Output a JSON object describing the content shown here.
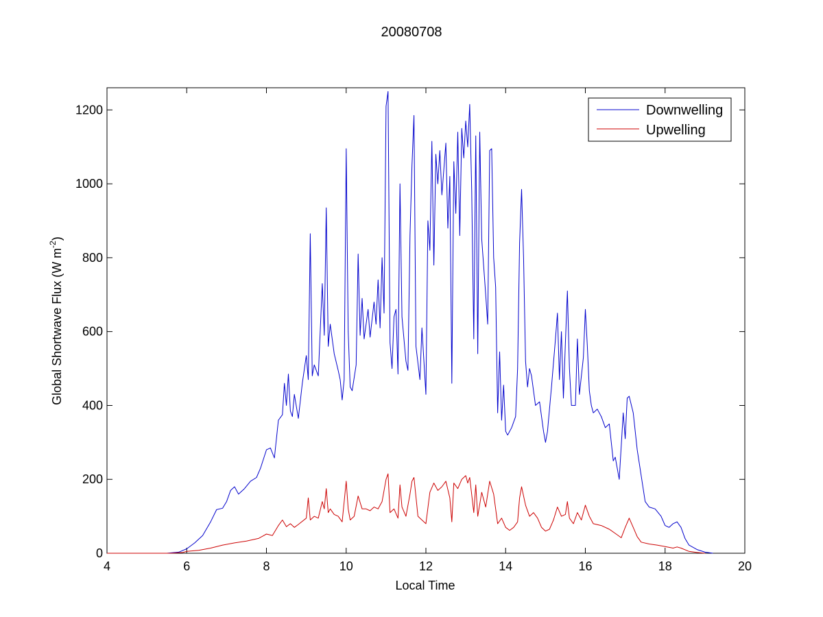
{
  "chart_data": {
    "type": "line",
    "title": "20080708",
    "xlabel": "Local Time",
    "ylabel_main": "Global Shortwave Flux (W m",
    "ylabel_sup": "-2",
    "ylabel_close": ")",
    "xlim": [
      4,
      20
    ],
    "ylim": [
      0,
      1260
    ],
    "xticks": [
      4,
      6,
      8,
      10,
      12,
      14,
      16,
      18,
      20
    ],
    "yticks": [
      0,
      200,
      400,
      600,
      800,
      1000,
      1200
    ],
    "grid": false,
    "legend_position": "top-right",
    "series": [
      {
        "name": "Downwelling",
        "color": "#0000cc",
        "points": [
          [
            4.0,
            0
          ],
          [
            5.5,
            0
          ],
          [
            5.8,
            3
          ],
          [
            6.0,
            12
          ],
          [
            6.2,
            28
          ],
          [
            6.4,
            48
          ],
          [
            6.6,
            85
          ],
          [
            6.75,
            118
          ],
          [
            6.9,
            122
          ],
          [
            7.0,
            140
          ],
          [
            7.1,
            170
          ],
          [
            7.2,
            180
          ],
          [
            7.3,
            160
          ],
          [
            7.45,
            175
          ],
          [
            7.6,
            195
          ],
          [
            7.75,
            205
          ],
          [
            7.85,
            230
          ],
          [
            8.0,
            280
          ],
          [
            8.1,
            285
          ],
          [
            8.2,
            258
          ],
          [
            8.3,
            360
          ],
          [
            8.4,
            375
          ],
          [
            8.45,
            460
          ],
          [
            8.5,
            400
          ],
          [
            8.55,
            485
          ],
          [
            8.6,
            385
          ],
          [
            8.65,
            370
          ],
          [
            8.7,
            430
          ],
          [
            8.8,
            365
          ],
          [
            8.9,
            460
          ],
          [
            9.0,
            535
          ],
          [
            9.05,
            470
          ],
          [
            9.1,
            865
          ],
          [
            9.15,
            480
          ],
          [
            9.2,
            510
          ],
          [
            9.3,
            480
          ],
          [
            9.4,
            730
          ],
          [
            9.45,
            590
          ],
          [
            9.5,
            935
          ],
          [
            9.55,
            560
          ],
          [
            9.6,
            620
          ],
          [
            9.7,
            540
          ],
          [
            9.8,
            495
          ],
          [
            9.85,
            470
          ],
          [
            9.9,
            415
          ],
          [
            9.95,
            470
          ],
          [
            10.0,
            1095
          ],
          [
            10.05,
            600
          ],
          [
            10.1,
            450
          ],
          [
            10.15,
            440
          ],
          [
            10.25,
            510
          ],
          [
            10.3,
            810
          ],
          [
            10.35,
            590
          ],
          [
            10.4,
            690
          ],
          [
            10.45,
            580
          ],
          [
            10.55,
            660
          ],
          [
            10.6,
            585
          ],
          [
            10.7,
            680
          ],
          [
            10.75,
            620
          ],
          [
            10.8,
            740
          ],
          [
            10.85,
            610
          ],
          [
            10.9,
            800
          ],
          [
            10.95,
            650
          ],
          [
            11.0,
            1210
          ],
          [
            11.05,
            1250
          ],
          [
            11.1,
            570
          ],
          [
            11.15,
            500
          ],
          [
            11.2,
            640
          ],
          [
            11.25,
            660
          ],
          [
            11.3,
            485
          ],
          [
            11.35,
            1000
          ],
          [
            11.4,
            640
          ],
          [
            11.5,
            520
          ],
          [
            11.55,
            495
          ],
          [
            11.6,
            860
          ],
          [
            11.65,
            1050
          ],
          [
            11.7,
            1185
          ],
          [
            11.75,
            560
          ],
          [
            11.85,
            470
          ],
          [
            11.9,
            610
          ],
          [
            12.0,
            430
          ],
          [
            12.05,
            900
          ],
          [
            12.1,
            820
          ],
          [
            12.15,
            1115
          ],
          [
            12.2,
            780
          ],
          [
            12.25,
            1080
          ],
          [
            12.3,
            1000
          ],
          [
            12.35,
            1090
          ],
          [
            12.4,
            970
          ],
          [
            12.45,
            1040
          ],
          [
            12.5,
            1110
          ],
          [
            12.55,
            880
          ],
          [
            12.6,
            1020
          ],
          [
            12.65,
            460
          ],
          [
            12.7,
            1060
          ],
          [
            12.75,
            920
          ],
          [
            12.8,
            1140
          ],
          [
            12.85,
            860
          ],
          [
            12.9,
            1150
          ],
          [
            12.95,
            1070
          ],
          [
            13.0,
            1170
          ],
          [
            13.05,
            1100
          ],
          [
            13.1,
            1215
          ],
          [
            13.15,
            980
          ],
          [
            13.2,
            580
          ],
          [
            13.25,
            1130
          ],
          [
            13.3,
            540
          ],
          [
            13.35,
            1140
          ],
          [
            13.4,
            850
          ],
          [
            13.5,
            700
          ],
          [
            13.55,
            620
          ],
          [
            13.6,
            1090
          ],
          [
            13.65,
            1095
          ],
          [
            13.7,
            800
          ],
          [
            13.75,
            720
          ],
          [
            13.8,
            380
          ],
          [
            13.85,
            545
          ],
          [
            13.9,
            360
          ],
          [
            13.95,
            455
          ],
          [
            14.0,
            330
          ],
          [
            14.05,
            320
          ],
          [
            14.15,
            340
          ],
          [
            14.25,
            370
          ],
          [
            14.3,
            500
          ],
          [
            14.35,
            840
          ],
          [
            14.4,
            985
          ],
          [
            14.45,
            800
          ],
          [
            14.5,
            520
          ],
          [
            14.55,
            450
          ],
          [
            14.6,
            500
          ],
          [
            14.65,
            480
          ],
          [
            14.75,
            400
          ],
          [
            14.85,
            410
          ],
          [
            14.95,
            330
          ],
          [
            15.0,
            300
          ],
          [
            15.05,
            330
          ],
          [
            15.15,
            450
          ],
          [
            15.25,
            580
          ],
          [
            15.3,
            650
          ],
          [
            15.35,
            470
          ],
          [
            15.4,
            600
          ],
          [
            15.45,
            420
          ],
          [
            15.5,
            570
          ],
          [
            15.55,
            710
          ],
          [
            15.6,
            500
          ],
          [
            15.65,
            400
          ],
          [
            15.75,
            400
          ],
          [
            15.8,
            580
          ],
          [
            15.85,
            430
          ],
          [
            15.95,
            530
          ],
          [
            16.0,
            660
          ],
          [
            16.05,
            560
          ],
          [
            16.1,
            440
          ],
          [
            16.15,
            400
          ],
          [
            16.2,
            380
          ],
          [
            16.3,
            390
          ],
          [
            16.4,
            370
          ],
          [
            16.5,
            340
          ],
          [
            16.6,
            350
          ],
          [
            16.7,
            250
          ],
          [
            16.75,
            260
          ],
          [
            16.8,
            230
          ],
          [
            16.85,
            200
          ],
          [
            16.9,
            290
          ],
          [
            16.95,
            380
          ],
          [
            17.0,
            310
          ],
          [
            17.05,
            420
          ],
          [
            17.1,
            425
          ],
          [
            17.2,
            380
          ],
          [
            17.3,
            280
          ],
          [
            17.4,
            210
          ],
          [
            17.5,
            140
          ],
          [
            17.6,
            125
          ],
          [
            17.75,
            120
          ],
          [
            17.9,
            100
          ],
          [
            18.0,
            75
          ],
          [
            18.1,
            70
          ],
          [
            18.2,
            80
          ],
          [
            18.3,
            85
          ],
          [
            18.4,
            70
          ],
          [
            18.5,
            40
          ],
          [
            18.6,
            22
          ],
          [
            18.8,
            10
          ],
          [
            19.0,
            3
          ],
          [
            19.2,
            0
          ]
        ]
      },
      {
        "name": "Upwelling",
        "color": "#cc0000",
        "points": [
          [
            4.0,
            0
          ],
          [
            5.6,
            0
          ],
          [
            5.9,
            2
          ],
          [
            6.0,
            5
          ],
          [
            6.3,
            8
          ],
          [
            6.6,
            14
          ],
          [
            6.9,
            22
          ],
          [
            7.2,
            28
          ],
          [
            7.5,
            33
          ],
          [
            7.8,
            40
          ],
          [
            8.0,
            52
          ],
          [
            8.15,
            48
          ],
          [
            8.3,
            75
          ],
          [
            8.4,
            90
          ],
          [
            8.5,
            72
          ],
          [
            8.6,
            80
          ],
          [
            8.7,
            70
          ],
          [
            8.8,
            78
          ],
          [
            9.0,
            95
          ],
          [
            9.05,
            150
          ],
          [
            9.1,
            90
          ],
          [
            9.2,
            100
          ],
          [
            9.3,
            95
          ],
          [
            9.4,
            140
          ],
          [
            9.45,
            120
          ],
          [
            9.5,
            175
          ],
          [
            9.55,
            110
          ],
          [
            9.6,
            120
          ],
          [
            9.7,
            105
          ],
          [
            9.8,
            100
          ],
          [
            9.9,
            85
          ],
          [
            10.0,
            195
          ],
          [
            10.05,
            120
          ],
          [
            10.1,
            90
          ],
          [
            10.2,
            100
          ],
          [
            10.3,
            155
          ],
          [
            10.4,
            120
          ],
          [
            10.5,
            120
          ],
          [
            10.6,
            115
          ],
          [
            10.7,
            125
          ],
          [
            10.8,
            120
          ],
          [
            10.9,
            140
          ],
          [
            11.0,
            200
          ],
          [
            11.05,
            215
          ],
          [
            11.1,
            110
          ],
          [
            11.2,
            120
          ],
          [
            11.3,
            95
          ],
          [
            11.35,
            185
          ],
          [
            11.4,
            125
          ],
          [
            11.5,
            100
          ],
          [
            11.6,
            160
          ],
          [
            11.65,
            195
          ],
          [
            11.7,
            205
          ],
          [
            11.8,
            100
          ],
          [
            11.9,
            90
          ],
          [
            12.0,
            80
          ],
          [
            12.1,
            165
          ],
          [
            12.2,
            190
          ],
          [
            12.3,
            170
          ],
          [
            12.4,
            180
          ],
          [
            12.5,
            195
          ],
          [
            12.6,
            150
          ],
          [
            12.65,
            85
          ],
          [
            12.7,
            190
          ],
          [
            12.8,
            175
          ],
          [
            12.9,
            200
          ],
          [
            13.0,
            210
          ],
          [
            13.05,
            190
          ],
          [
            13.1,
            205
          ],
          [
            13.2,
            110
          ],
          [
            13.25,
            185
          ],
          [
            13.3,
            100
          ],
          [
            13.4,
            165
          ],
          [
            13.5,
            125
          ],
          [
            13.6,
            195
          ],
          [
            13.7,
            160
          ],
          [
            13.8,
            80
          ],
          [
            13.9,
            95
          ],
          [
            14.0,
            70
          ],
          [
            14.1,
            62
          ],
          [
            14.2,
            70
          ],
          [
            14.3,
            85
          ],
          [
            14.35,
            150
          ],
          [
            14.4,
            180
          ],
          [
            14.5,
            130
          ],
          [
            14.6,
            100
          ],
          [
            14.7,
            110
          ],
          [
            14.8,
            95
          ],
          [
            14.9,
            70
          ],
          [
            15.0,
            60
          ],
          [
            15.1,
            65
          ],
          [
            15.2,
            90
          ],
          [
            15.3,
            125
          ],
          [
            15.4,
            100
          ],
          [
            15.5,
            105
          ],
          [
            15.55,
            140
          ],
          [
            15.6,
            95
          ],
          [
            15.7,
            80
          ],
          [
            15.8,
            110
          ],
          [
            15.9,
            90
          ],
          [
            16.0,
            130
          ],
          [
            16.1,
            100
          ],
          [
            16.2,
            80
          ],
          [
            16.4,
            75
          ],
          [
            16.6,
            65
          ],
          [
            16.8,
            50
          ],
          [
            16.9,
            42
          ],
          [
            17.0,
            70
          ],
          [
            17.1,
            95
          ],
          [
            17.2,
            70
          ],
          [
            17.3,
            45
          ],
          [
            17.4,
            30
          ],
          [
            17.6,
            25
          ],
          [
            17.8,
            22
          ],
          [
            18.0,
            18
          ],
          [
            18.2,
            14
          ],
          [
            18.3,
            17
          ],
          [
            18.4,
            14
          ],
          [
            18.6,
            5
          ],
          [
            18.8,
            2
          ],
          [
            19.0,
            0
          ]
        ]
      }
    ]
  }
}
